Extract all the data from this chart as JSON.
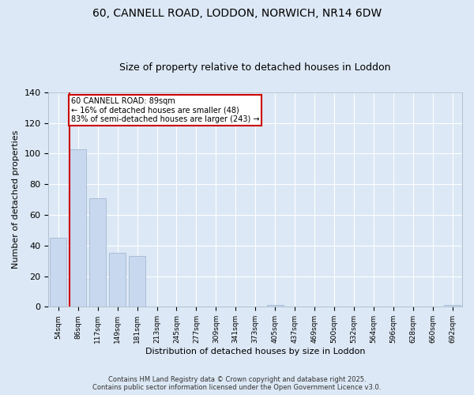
{
  "title1": "60, CANNELL ROAD, LODDON, NORWICH, NR14 6DW",
  "title2": "Size of property relative to detached houses in Loddon",
  "xlabel": "Distribution of detached houses by size in Loddon",
  "ylabel": "Number of detached properties",
  "categories": [
    "54sqm",
    "86sqm",
    "117sqm",
    "149sqm",
    "181sqm",
    "213sqm",
    "245sqm",
    "277sqm",
    "309sqm",
    "341sqm",
    "373sqm",
    "405sqm",
    "437sqm",
    "469sqm",
    "500sqm",
    "532sqm",
    "564sqm",
    "596sqm",
    "628sqm",
    "660sqm",
    "692sqm"
  ],
  "values": [
    45,
    103,
    71,
    35,
    33,
    0,
    0,
    0,
    0,
    0,
    0,
    1,
    0,
    0,
    0,
    0,
    0,
    0,
    0,
    0,
    1
  ],
  "bar_color": "#c8d8ee",
  "bar_edge_color": "#9ab0cc",
  "subject_line_color": "#cc0000",
  "ylim": [
    0,
    140
  ],
  "yticks": [
    0,
    20,
    40,
    60,
    80,
    100,
    120,
    140
  ],
  "annotation_box_text": "60 CANNELL ROAD: 89sqm\n← 16% of detached houses are smaller (48)\n83% of semi-detached houses are larger (243) →",
  "annotation_box_color": "#cc0000",
  "footer_line1": "Contains HM Land Registry data © Crown copyright and database right 2025.",
  "footer_line2": "Contains public sector information licensed under the Open Government Licence v3.0.",
  "plot_bg_color": "#dce8f5",
  "fig_bg_color": "#dce8f5",
  "grid_color": "#ffffff",
  "title1_fontsize": 10,
  "title2_fontsize": 9
}
